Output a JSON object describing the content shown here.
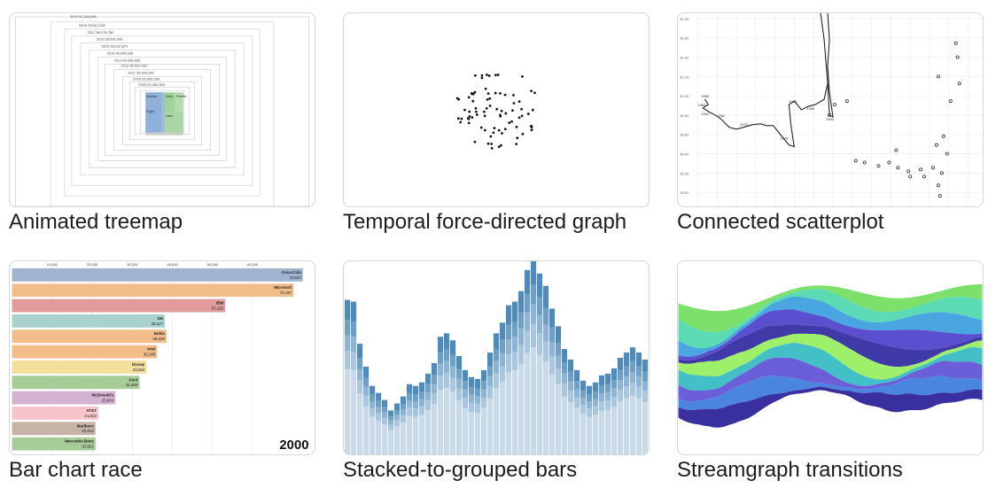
{
  "cards": [
    {
      "title": "Animated treemap"
    },
    {
      "title": "Temporal force-directed graph"
    },
    {
      "title": "Connected scatterplot"
    },
    {
      "title": "Bar chart race"
    },
    {
      "title": "Stacked-to-grouped bars"
    },
    {
      "title": "Streamgraph transitions"
    }
  ],
  "bar_race": {
    "year": "2000",
    "axis_ticks": [
      "10,000",
      "20,000",
      "30,000",
      "40,000",
      "50,000",
      "60,000"
    ],
    "bars": [
      {
        "name": "Coca-Cola",
        "value": "72,537",
        "color": "#9fb4cf"
      },
      {
        "name": "Microsoft",
        "value": "70,197",
        "color": "#f2bd8a"
      },
      {
        "name": "IBM",
        "value": "53,183",
        "color": "#e09b9a"
      },
      {
        "name": "GE",
        "value": "38,127",
        "color": "#a9d1cd"
      },
      {
        "name": "Nokia",
        "value": "38,528",
        "color": "#f2bd8a"
      },
      {
        "name": "Intel",
        "value": "36,188",
        "color": "#f2bd8a"
      },
      {
        "name": "Disney",
        "value": "33,553",
        "color": "#f5df9c"
      },
      {
        "name": "Ford",
        "value": "31,800",
        "color": "#a7cc98"
      },
      {
        "name": "McDonald's",
        "value": "25,800",
        "color": "#d4b3d0"
      },
      {
        "name": "AT&T",
        "value": "21,522",
        "color": "#f7c4cc"
      },
      {
        "name": "Marlboro",
        "value": "20,822",
        "color": "#c8b4a7"
      },
      {
        "name": "Mercedes-Benz",
        "value": "20,822",
        "color": "#a7cc98"
      }
    ]
  },
  "treemap_labels": [
    "2019",
    "2018",
    "2017",
    "2016",
    "2015",
    "2014",
    "2013",
    "2012",
    "2011",
    "2010"
  ],
  "scatter_labels": [
    "1959",
    "1960",
    "1961",
    "1962",
    "1970",
    "1975",
    "1980",
    "1985",
    "1990"
  ]
}
